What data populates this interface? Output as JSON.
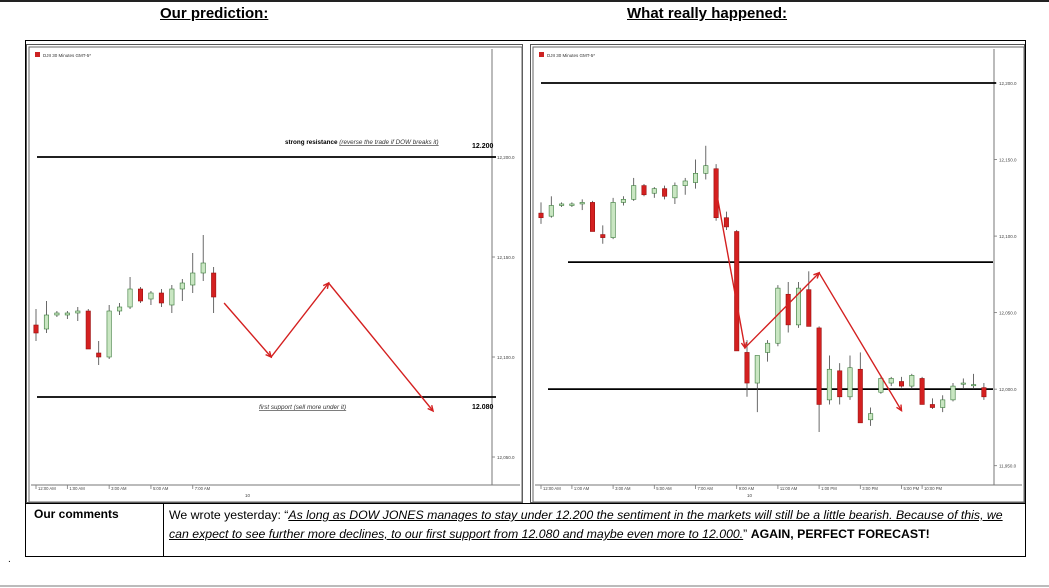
{
  "headings": {
    "left": "Our prediction:",
    "right": "What really happened:"
  },
  "colors": {
    "up": "#c9e6c2",
    "down": "#d42020",
    "arrow": "#d42020",
    "line": "#000000"
  },
  "chart_data": [
    {
      "type": "candlestick",
      "symbol_label": "DJII 30 Minutes GMT-5*",
      "ylim": [
        12038,
        12250
      ],
      "y_ticks": [
        "12,200.0",
        "12,150.0",
        "12,100.0",
        "12,050.0"
      ],
      "y_tick_values": [
        12200,
        12150,
        12100,
        12050
      ],
      "x_ticks": [
        "12:00 AM",
        "1:00 AM",
        "3:00 AM",
        "5:00 AM",
        "7:00 AM"
      ],
      "x_tick_index": [
        0,
        3,
        7,
        11,
        15
      ],
      "date_label": "10",
      "date_index": 20,
      "candles_total": 40,
      "candles": [
        {
          "o": 12116,
          "h": 12124,
          "l": 12108,
          "c": 12112
        },
        {
          "o": 12114,
          "h": 12128,
          "l": 12112,
          "c": 12121
        },
        {
          "o": 12121,
          "h": 12123,
          "l": 12120,
          "c": 12122
        },
        {
          "o": 12121,
          "h": 12123,
          "l": 12119,
          "c": 12122
        },
        {
          "o": 12122,
          "h": 12125,
          "l": 12118,
          "c": 12123
        },
        {
          "o": 12123,
          "h": 12124,
          "l": 12104,
          "c": 12104
        },
        {
          "o": 12102,
          "h": 12108,
          "l": 12096,
          "c": 12100
        },
        {
          "o": 12100,
          "h": 12126,
          "l": 12099,
          "c": 12123
        },
        {
          "o": 12123,
          "h": 12127,
          "l": 12121,
          "c": 12125
        },
        {
          "o": 12125,
          "h": 12140,
          "l": 12124,
          "c": 12134
        },
        {
          "o": 12134,
          "h": 12135,
          "l": 12127,
          "c": 12128
        },
        {
          "o": 12129,
          "h": 12133,
          "l": 12126,
          "c": 12132
        },
        {
          "o": 12132,
          "h": 12134,
          "l": 12125,
          "c": 12127
        },
        {
          "o": 12126,
          "h": 12136,
          "l": 12122,
          "c": 12134
        },
        {
          "o": 12134,
          "h": 12139,
          "l": 12128,
          "c": 12137
        },
        {
          "o": 12136,
          "h": 12152,
          "l": 12132,
          "c": 12142
        },
        {
          "o": 12142,
          "h": 12161,
          "l": 12138,
          "c": 12147
        },
        {
          "o": 12142,
          "h": 12145,
          "l": 12122,
          "c": 12130
        }
      ],
      "levels": [
        {
          "value": 12200,
          "label": "12.200",
          "note_bold": "strong resistance",
          "note": "(reverse the trade if DOW breaks it)"
        },
        {
          "value": 12080,
          "label": "12.080",
          "note_bold": "",
          "note": "first support (sell more under it)"
        }
      ],
      "prediction_path": [
        {
          "i": 18,
          "v": 12127
        },
        {
          "i": 22.5,
          "v": 12100
        },
        {
          "i": 28,
          "v": 12137
        },
        {
          "i": 38,
          "v": 12073
        }
      ]
    },
    {
      "type": "candlestick",
      "symbol_label": "DJII 30 Minutes GMT-5*",
      "ylim": [
        11940,
        12217
      ],
      "y_ticks": [
        "12,200.0",
        "12,150.0",
        "12,100.0",
        "12,050.0",
        "12,000.0",
        "11,950.0"
      ],
      "y_tick_values": [
        12200,
        12150,
        12100,
        12050,
        12000,
        11950
      ],
      "x_ticks": [
        "12:00 AM",
        "1:00 AM",
        "3:00 AM",
        "5:00 AM",
        "7:00 AM",
        "9:00 AM",
        "11:00 AM",
        "1:00 PM",
        "3:00 PM",
        "5:00 PM",
        "10:00 PM"
      ],
      "x_tick_index": [
        0,
        3,
        7,
        11,
        15,
        19,
        23,
        27,
        31,
        35,
        37
      ],
      "date_label": "10",
      "date_index": 20,
      "candles_total": 42,
      "candles": [
        {
          "o": 12115,
          "h": 12122,
          "l": 12108,
          "c": 12112
        },
        {
          "o": 12113,
          "h": 12126,
          "l": 12112,
          "c": 12120
        },
        {
          "o": 12120,
          "h": 12122,
          "l": 12119,
          "c": 12121
        },
        {
          "o": 12120,
          "h": 12122,
          "l": 12119,
          "c": 12121
        },
        {
          "o": 12121,
          "h": 12124,
          "l": 12117,
          "c": 12122
        },
        {
          "o": 12122,
          "h": 12123,
          "l": 12103,
          "c": 12103
        },
        {
          "o": 12101,
          "h": 12107,
          "l": 12095,
          "c": 12099
        },
        {
          "o": 12099,
          "h": 12125,
          "l": 12098,
          "c": 12122
        },
        {
          "o": 12122,
          "h": 12126,
          "l": 12120,
          "c": 12124
        },
        {
          "o": 12124,
          "h": 12138,
          "l": 12123,
          "c": 12133
        },
        {
          "o": 12133,
          "h": 12134,
          "l": 12126,
          "c": 12127
        },
        {
          "o": 12128,
          "h": 12132,
          "l": 12125,
          "c": 12131
        },
        {
          "o": 12131,
          "h": 12133,
          "l": 12124,
          "c": 12126
        },
        {
          "o": 12125,
          "h": 12135,
          "l": 12121,
          "c": 12133
        },
        {
          "o": 12133,
          "h": 12138,
          "l": 12127,
          "c": 12136
        },
        {
          "o": 12135,
          "h": 12150,
          "l": 12131,
          "c": 12141
        },
        {
          "o": 12141,
          "h": 12159,
          "l": 12137,
          "c": 12146
        },
        {
          "o": 12144,
          "h": 12147,
          "l": 12110,
          "c": 12112
        },
        {
          "o": 12112,
          "h": 12116,
          "l": 12104,
          "c": 12106
        },
        {
          "o": 12103,
          "h": 12104,
          "l": 12025,
          "c": 12025
        },
        {
          "o": 12024,
          "h": 12032,
          "l": 11995,
          "c": 12004
        },
        {
          "o": 12004,
          "h": 12020,
          "l": 11985,
          "c": 12022
        },
        {
          "o": 12024,
          "h": 12032,
          "l": 12018,
          "c": 12030
        },
        {
          "o": 12030,
          "h": 12068,
          "l": 12028,
          "c": 12066
        },
        {
          "o": 12062,
          "h": 12070,
          "l": 12037,
          "c": 12042
        },
        {
          "o": 12042,
          "h": 12070,
          "l": 12040,
          "c": 12066
        },
        {
          "o": 12065,
          "h": 12077,
          "l": 12041,
          "c": 12041
        },
        {
          "o": 12040,
          "h": 12041,
          "l": 11972,
          "c": 11990
        },
        {
          "o": 11993,
          "h": 12022,
          "l": 11990,
          "c": 12013
        },
        {
          "o": 12012,
          "h": 12017,
          "l": 11990,
          "c": 11995
        },
        {
          "o": 11995,
          "h": 12022,
          "l": 11993,
          "c": 12014
        },
        {
          "o": 12013,
          "h": 12024,
          "l": 11978,
          "c": 11978
        },
        {
          "o": 11980,
          "h": 11988,
          "l": 11976,
          "c": 11984
        },
        {
          "o": 11998,
          "h": 12009,
          "l": 11997,
          "c": 12007
        },
        {
          "o": 12004,
          "h": 12008,
          "l": 12002,
          "c": 12007
        },
        {
          "o": 12005,
          "h": 12008,
          "l": 12001,
          "c": 12002
        },
        {
          "o": 12002,
          "h": 12010,
          "l": 12000,
          "c": 12009
        },
        {
          "o": 12007,
          "h": 12008,
          "l": 11990,
          "c": 11990
        },
        {
          "o": 11990,
          "h": 11994,
          "l": 11987,
          "c": 11988
        },
        {
          "o": 11988,
          "h": 11996,
          "l": 11985,
          "c": 11993
        },
        {
          "o": 11993,
          "h": 12004,
          "l": 11992,
          "c": 12002
        },
        {
          "o": 12004,
          "h": 12007,
          "l": 12000,
          "c": 12004
        }
      ],
      "extra_candles": [
        {
          "o": 12003,
          "h": 12010,
          "l": 12000,
          "c": 12003
        },
        {
          "o": 12001,
          "h": 12004,
          "l": 11993,
          "c": 11995
        }
      ],
      "levels": [
        {
          "value": 12200,
          "label": "",
          "note_bold": "",
          "note": ""
        },
        {
          "value": 12083,
          "label": "",
          "note_bold": "",
          "note": ""
        },
        {
          "value": 12000,
          "label": "",
          "note_bold": "",
          "note": ""
        }
      ],
      "prediction_path": [
        {
          "i": 17,
          "v": 12130
        },
        {
          "i": 19.8,
          "v": 12027
        },
        {
          "i": 27,
          "v": 12076
        },
        {
          "i": 35,
          "v": 11986
        }
      ]
    }
  ],
  "comments": {
    "label": "Our comments",
    "lead": "We wrote yesterday: “",
    "quote": "As long as DOW JONES manages to stay under 12.200 the sentiment in the markets will still be a little bearish. Because of this, we can expect to see further more declines, to our first support from 12.080 and maybe even more to 12.000.",
    "tail": "” ",
    "emphasis": "AGAIN, PERFECT FORECAST!"
  }
}
